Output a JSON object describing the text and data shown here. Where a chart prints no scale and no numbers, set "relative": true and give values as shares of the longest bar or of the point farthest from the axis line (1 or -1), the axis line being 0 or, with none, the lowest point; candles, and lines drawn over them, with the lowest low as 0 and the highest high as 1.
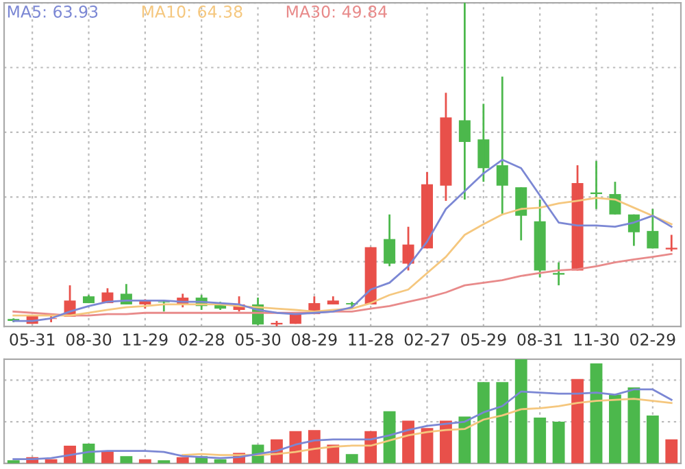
{
  "chart_data": [
    {
      "type": "candlestick",
      "relative": true,
      "grid": true,
      "legend": "top left",
      "marker": "none",
      "line_style": "solid",
      "tick_labels": "x",
      "categories": [
        null,
        "05-31",
        null,
        null,
        "08-30",
        null,
        null,
        "11-29",
        null,
        null,
        "02-28",
        null,
        null,
        "05-30",
        null,
        null,
        "08-29",
        null,
        null,
        "11-28",
        null,
        null,
        "02-27",
        null,
        null,
        "05-29",
        null,
        null,
        "08-31",
        null,
        null,
        "11-30",
        null,
        null,
        "02-29",
        null
      ],
      "ohlc": [
        [
          0.023,
          0.025,
          0.013,
          0.017
        ],
        [
          0.008,
          0.034,
          0.008,
          0.034
        ],
        [
          0.023,
          0.038,
          0.013,
          0.025
        ],
        [
          0.03,
          0.127,
          0.03,
          0.08
        ],
        [
          0.093,
          0.097,
          0.072,
          0.072
        ],
        [
          0.072,
          0.118,
          0.072,
          0.105
        ],
        [
          0.101,
          0.131,
          0.068,
          0.068
        ],
        [
          0.068,
          0.084,
          0.055,
          0.08
        ],
        [
          0.076,
          0.08,
          0.046,
          0.074
        ],
        [
          0.068,
          0.101,
          0.059,
          0.089
        ],
        [
          0.089,
          0.097,
          0.051,
          0.063
        ],
        [
          0.068,
          0.076,
          0.051,
          0.055
        ],
        [
          0.051,
          0.093,
          0.046,
          0.068
        ],
        [
          0.068,
          0.089,
          0.004,
          0.006
        ],
        [
          0.006,
          0.017,
          0,
          0.011
        ],
        [
          0.008,
          0.042,
          0.008,
          0.042
        ],
        [
          0.038,
          0.093,
          0.038,
          0.072
        ],
        [
          0.068,
          0.093,
          0.068,
          0.08
        ],
        [
          0.072,
          0.076,
          0.055,
          0.068
        ],
        [
          0.068,
          0.245,
          0.068,
          0.245
        ],
        [
          0.27,
          0.346,
          0.186,
          0.194
        ],
        [
          0.194,
          0.308,
          0.173,
          0.253
        ],
        [
          0.241,
          0.477,
          0.241,
          0.439
        ],
        [
          0.435,
          0.722,
          0.388,
          0.646
        ],
        [
          0.637,
          1,
          0.392,
          0.57
        ],
        [
          0.578,
          0.688,
          0.447,
          0.489
        ],
        [
          0.498,
          0.772,
          0.346,
          0.435
        ],
        [
          0.43,
          0.43,
          0.266,
          0.342
        ],
        [
          0.325,
          0.392,
          0.152,
          0.173
        ],
        [
          0.165,
          0.198,
          0.127,
          0.16
        ],
        [
          0.173,
          0.498,
          0.173,
          0.443
        ],
        [
          0.414,
          0.511,
          0.363,
          0.409
        ],
        [
          0.409,
          0.447,
          0.346,
          0.346
        ],
        [
          0.346,
          0.346,
          0.249,
          0.291
        ],
        [
          0.295,
          0.363,
          0.241,
          0.241
        ],
        [
          0.238,
          0.283,
          0.232,
          0.243
        ]
      ],
      "colors": [
        "#4cb84c",
        "#e8504a",
        "#e8504a",
        "#e8504a",
        "#4cb84c",
        "#e8504a",
        "#4cb84c",
        "#e8504a",
        "#4cb84c",
        "#e8504a",
        "#4cb84c",
        "#4cb84c",
        "#e8504a",
        "#4cb84c",
        "#e8504a",
        "#e8504a",
        "#e8504a",
        "#e8504a",
        "#4cb84c",
        "#e8504a",
        "#4cb84c",
        "#e8504a",
        "#e8504a",
        "#e8504a",
        "#4cb84c",
        "#4cb84c",
        "#4cb84c",
        "#4cb84c",
        "#4cb84c",
        "#4cb84c",
        "#e8504a",
        "#4cb84c",
        "#4cb84c",
        "#4cb84c",
        "#4cb84c",
        "#e8504a"
      ],
      "series": [
        {
          "name": "MA5: 63.93",
          "type": "line",
          "color": "#7b87d4",
          "values": [
            0.017,
            0.017,
            0.025,
            0.046,
            0.063,
            0.076,
            0.08,
            0.08,
            0.08,
            0.076,
            0.076,
            0.072,
            0.068,
            0.051,
            0.042,
            0.038,
            0.042,
            0.046,
            0.059,
            0.114,
            0.135,
            0.186,
            0.262,
            0.363,
            0.418,
            0.473,
            0.515,
            0.489,
            0.405,
            0.321,
            0.312,
            0.312,
            0.308,
            0.321,
            0.342,
            0.308
          ]
        },
        {
          "name": "MA10: 64.38",
          "type": "line",
          "color": "#f5c77e",
          "values": [
            0.034,
            0.034,
            0.034,
            0.034,
            0.042,
            0.051,
            0.059,
            0.063,
            0.068,
            0.068,
            0.068,
            0.068,
            0.063,
            0.059,
            0.055,
            0.051,
            0.046,
            0.051,
            0.055,
            0.072,
            0.097,
            0.114,
            0.165,
            0.215,
            0.283,
            0.316,
            0.346,
            0.363,
            0.367,
            0.38,
            0.388,
            0.397,
            0.392,
            0.367,
            0.342,
            0.316
          ]
        },
        {
          "name": "MA30: 49.84",
          "type": "line",
          "color": "#e88a8a",
          "values": [
            0.046,
            0.042,
            0.038,
            0.034,
            0.034,
            0.038,
            0.038,
            0.042,
            0.042,
            0.042,
            0.042,
            0.042,
            0.042,
            0.042,
            0.042,
            0.042,
            0.042,
            0.046,
            0.046,
            0.055,
            0.063,
            0.076,
            0.089,
            0.105,
            0.127,
            0.135,
            0.143,
            0.156,
            0.165,
            0.173,
            0.177,
            0.186,
            0.198,
            0.207,
            0.215,
            0.224
          ]
        }
      ]
    },
    {
      "type": "bar",
      "relative": true,
      "grid": true,
      "marker": "none",
      "line_style": "solid",
      "tick_labels": false,
      "categories": [
        null,
        null,
        null,
        null,
        null,
        null,
        null,
        null,
        null,
        null,
        null,
        null,
        null,
        null,
        null,
        null,
        null,
        null,
        null,
        null,
        null,
        null,
        null,
        null,
        null,
        null,
        null,
        null,
        null,
        null,
        null,
        null,
        null,
        null,
        null,
        null
      ],
      "series": [
        {
          "type": "bar",
          "values": [
            0.03,
            0.06,
            0.04,
            0.17,
            0.19,
            0.11,
            0.07,
            0.04,
            0.03,
            0.06,
            0.07,
            0.04,
            0.1,
            0.18,
            0.23,
            0.31,
            0.32,
            0.18,
            0.09,
            0.31,
            0.5,
            0.41,
            0.34,
            0.41,
            0.45,
            0.78,
            0.78,
            1,
            0.44,
            0.4,
            0.81,
            0.96,
            0.66,
            0.73,
            0.46,
            0.23
          ],
          "colors": [
            "#4cb84c",
            "#e8504a",
            "#e8504a",
            "#e8504a",
            "#4cb84c",
            "#e8504a",
            "#4cb84c",
            "#e8504a",
            "#4cb84c",
            "#e8504a",
            "#4cb84c",
            "#4cb84c",
            "#e8504a",
            "#4cb84c",
            "#e8504a",
            "#e8504a",
            "#e8504a",
            "#e8504a",
            "#4cb84c",
            "#e8504a",
            "#4cb84c",
            "#e8504a",
            "#e8504a",
            "#e8504a",
            "#4cb84c",
            "#4cb84c",
            "#4cb84c",
            "#4cb84c",
            "#4cb84c",
            "#4cb84c",
            "#e8504a",
            "#4cb84c",
            "#4cb84c",
            "#4cb84c",
            "#4cb84c",
            "#e8504a"
          ]
        },
        {
          "type": "line",
          "color": "#7b87d4",
          "values": [
            0.04,
            0.04,
            0.05,
            0.08,
            0.11,
            0.12,
            0.12,
            0.12,
            0.11,
            0.07,
            0.06,
            0.05,
            0.06,
            0.09,
            0.12,
            0.18,
            0.22,
            0.23,
            0.23,
            0.23,
            0.27,
            0.32,
            0.36,
            0.38,
            0.4,
            0.49,
            0.55,
            0.69,
            0.68,
            0.67,
            0.67,
            0.68,
            0.66,
            0.71,
            0.71,
            0.61
          ]
        },
        {
          "type": "line",
          "color": "#f5c77e",
          "values": [
            null,
            null,
            null,
            null,
            null,
            null,
            null,
            null,
            null,
            0.08,
            0.09,
            0.08,
            0.08,
            0.08,
            0.09,
            0.11,
            0.14,
            0.16,
            0.17,
            0.17,
            0.22,
            0.27,
            0.3,
            0.32,
            0.33,
            0.42,
            0.46,
            0.52,
            0.53,
            0.55,
            0.58,
            0.6,
            0.61,
            0.62,
            0.6,
            0.58
          ]
        }
      ]
    }
  ]
}
